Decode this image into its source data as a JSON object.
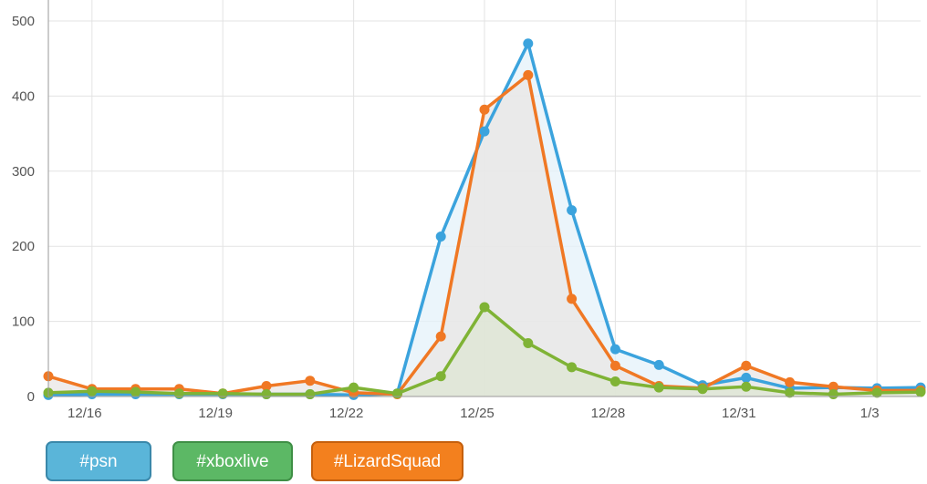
{
  "chart_data": {
    "type": "line",
    "title": "",
    "xlabel": "",
    "ylabel": "",
    "ylim": [
      0,
      500
    ],
    "y_ticks": [
      0,
      100,
      200,
      300,
      400,
      500
    ],
    "x_tick_labels": [
      "12/16",
      "12/19",
      "12/22",
      "12/25",
      "12/28",
      "12/31",
      "1/3"
    ],
    "grid": true,
    "legend_position": "bottom-left",
    "x": [
      "12/15",
      "12/16",
      "12/17",
      "12/18",
      "12/19",
      "12/20",
      "12/21",
      "12/22",
      "12/23",
      "12/24",
      "12/25",
      "12/26",
      "12/27",
      "12/28",
      "12/29",
      "12/30",
      "12/31",
      "1/1",
      "1/2",
      "1/3",
      "1/4"
    ],
    "series": [
      {
        "name": "#psn",
        "color": "#3ba3dd",
        "fill": "#e4f1fa",
        "values": [
          2,
          3,
          3,
          3,
          3,
          3,
          3,
          2,
          4,
          213,
          353,
          470,
          248,
          63,
          42,
          15,
          25,
          11,
          12,
          11,
          12
        ]
      },
      {
        "name": "#LizardSquad",
        "color": "#f07824",
        "fill": "#eae6e4",
        "values": [
          27,
          10,
          10,
          10,
          4,
          14,
          21,
          5,
          3,
          80,
          382,
          428,
          130,
          41,
          14,
          11,
          41,
          19,
          13,
          8,
          8
        ]
      },
      {
        "name": "#xboxlive",
        "color": "#7fb335",
        "fill": "#dde6d3",
        "values": [
          5,
          7,
          6,
          4,
          4,
          3,
          3,
          12,
          4,
          27,
          119,
          71,
          39,
          20,
          12,
          10,
          13,
          5,
          3,
          5,
          6
        ]
      }
    ]
  },
  "legend": {
    "items": [
      {
        "label": "#psn",
        "color": "#5ab5d9",
        "border": "#3a88aa"
      },
      {
        "label": "#xboxlive",
        "color": "#5cb865",
        "border": "#3f8f46"
      },
      {
        "label": "#LizardSquad",
        "color": "#f3801e",
        "border": "#c5600d"
      }
    ]
  }
}
